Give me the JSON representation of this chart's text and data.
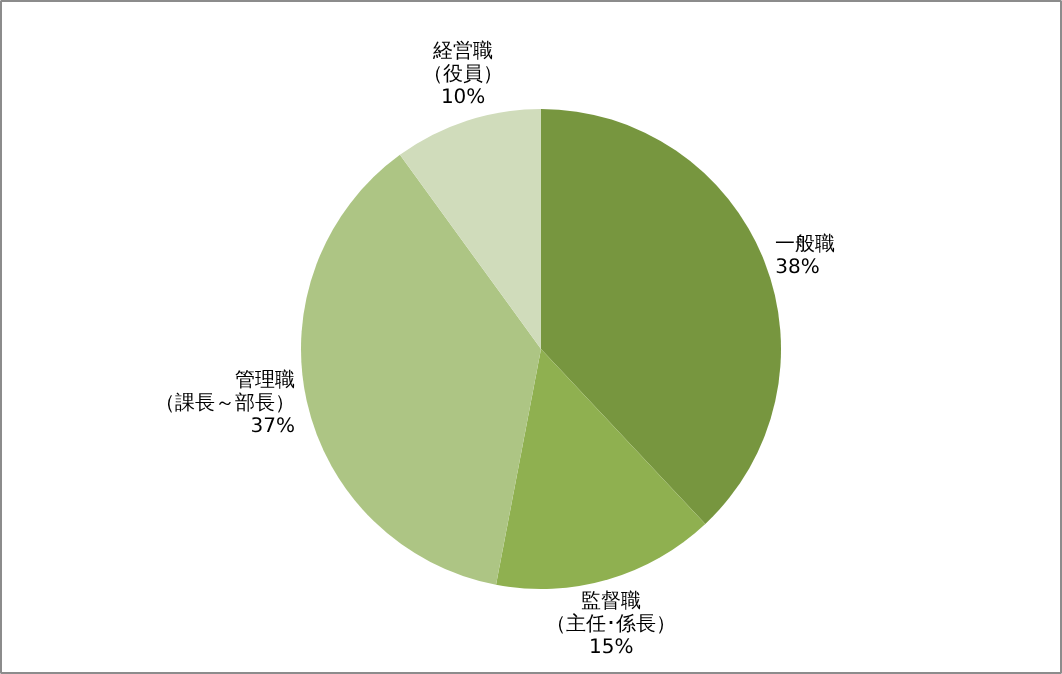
{
  "chart_data": {
    "type": "pie",
    "categories": [
      "一般職",
      "監督職（主任･係長）",
      "管理職（課長～部長）",
      "経営職（役員）"
    ],
    "values": [
      38,
      15,
      37,
      10
    ],
    "value_labels": [
      "38%",
      "15%",
      "37%",
      "10%"
    ],
    "colors": [
      "#77963f",
      "#8fb050",
      "#adc584",
      "#d0dcbb"
    ]
  }
}
